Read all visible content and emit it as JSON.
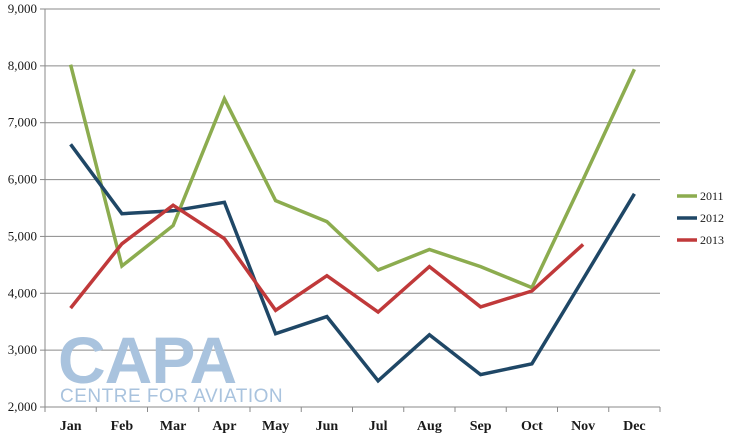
{
  "chart_data": {
    "type": "line",
    "title": "",
    "xlabel": "",
    "ylabel": "",
    "categories": [
      "Jan",
      "Feb",
      "Mar",
      "Apr",
      "May",
      "Jun",
      "Jul",
      "Aug",
      "Sep",
      "Oct",
      "Nov",
      "Dec"
    ],
    "ylim": [
      2000,
      9000
    ],
    "yticks": [
      2000,
      3000,
      4000,
      5000,
      6000,
      7000,
      8000,
      9000
    ],
    "ytick_labels": [
      "2,000",
      "3,000",
      "4,000",
      "5,000",
      "6,000",
      "7,000",
      "8,000",
      "9,000"
    ],
    "grid": true,
    "legend_position": "right",
    "series": [
      {
        "name": "2011",
        "color": "#8cac4f",
        "values": [
          8020,
          4480,
          5190,
          7420,
          5630,
          5260,
          4410,
          4770,
          4470,
          4100,
          6000,
          7940
        ]
      },
      {
        "name": "2012",
        "color": "#1f4766",
        "values": [
          6620,
          5400,
          5450,
          5600,
          3290,
          3590,
          2460,
          3270,
          2570,
          2760,
          4250,
          5750
        ]
      },
      {
        "name": "2013",
        "color": "#c0393a",
        "values": [
          3740,
          4870,
          5550,
          4960,
          3700,
          4310,
          3670,
          4470,
          3760,
          4040,
          4860,
          null
        ]
      }
    ]
  },
  "watermark": {
    "logo_text": "CAPA",
    "tagline": "CENTRE FOR AVIATION"
  }
}
